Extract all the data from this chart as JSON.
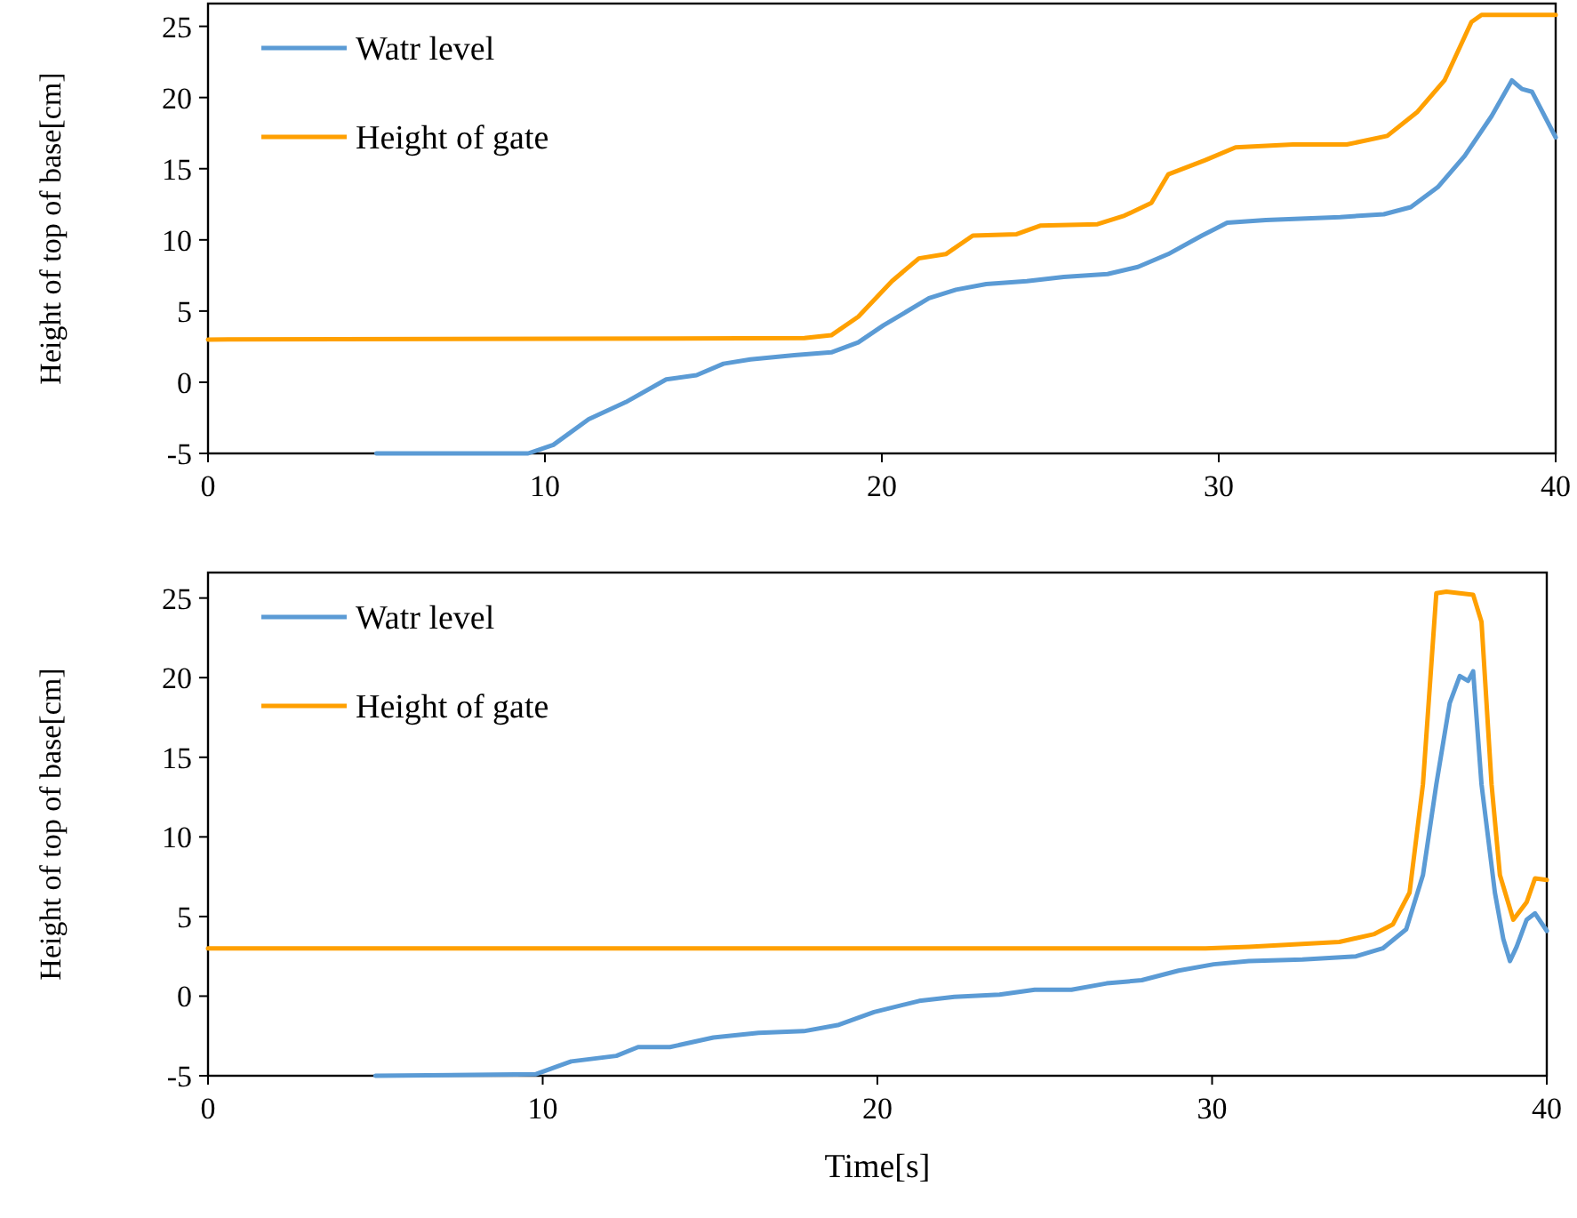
{
  "chart_data": [
    {
      "type": "line",
      "ylabel": "Height of top of base[cm]",
      "xlim": [
        0,
        40
      ],
      "xticks": [
        0,
        10,
        20,
        30,
        40
      ],
      "ylim": [
        -5,
        26.6
      ],
      "yticks": [
        -5,
        0,
        5,
        10,
        15,
        20,
        25
      ],
      "legend": "top left",
      "series": [
        {
          "name": "Watr level",
          "color": "#5b9bd5",
          "x": [
            5,
            9.5,
            10.25,
            11.3,
            12.4,
            13.6,
            14.5,
            15.3,
            16.1,
            17.4,
            18.5,
            19.3,
            20.05,
            21.4,
            22.2,
            23.1,
            24.3,
            25.4,
            26.7,
            27.6,
            28.5,
            29.5,
            30.25,
            31.4,
            33.6,
            34.9,
            35.7,
            36.5,
            37.3,
            38.1,
            38.7,
            39.0,
            39.3,
            40
          ],
          "values": [
            -5,
            -5,
            -4.4,
            -2.6,
            -1.4,
            0.2,
            0.5,
            1.3,
            1.6,
            1.9,
            2.1,
            2.8,
            4.0,
            5.9,
            6.5,
            6.9,
            7.1,
            7.4,
            7.6,
            8.1,
            9.0,
            10.3,
            11.2,
            11.4,
            11.6,
            11.8,
            12.3,
            13.7,
            15.9,
            18.7,
            21.2,
            20.6,
            20.4,
            17.2
          ]
        },
        {
          "name": "Height of gate",
          "color": "#ffa000",
          "x": [
            0,
            17.7,
            18.5,
            19.3,
            20.3,
            21.1,
            21.9,
            22.7,
            24.0,
            24.7,
            26.4,
            27.2,
            28.0,
            28.5,
            29.6,
            30.5,
            32.2,
            33.8,
            35.0,
            35.9,
            36.7,
            37.5,
            37.8,
            40
          ],
          "values": [
            3,
            3.1,
            3.3,
            4.6,
            7.1,
            8.7,
            9.0,
            10.3,
            10.4,
            11.0,
            11.1,
            11.7,
            12.6,
            14.6,
            15.6,
            16.5,
            16.7,
            16.7,
            17.3,
            19.0,
            21.2,
            25.3,
            25.8,
            25.8
          ]
        }
      ]
    },
    {
      "type": "line",
      "xlabel": "Time[s]",
      "ylabel": "Height of top of base[cm]",
      "xlim": [
        0,
        40
      ],
      "xticks": [
        0,
        10,
        20,
        30,
        40
      ],
      "ylim": [
        -5,
        26.6
      ],
      "yticks": [
        -5,
        0,
        5,
        10,
        15,
        20,
        25
      ],
      "legend": "top left",
      "series": [
        {
          "name": "Watr level",
          "color": "#5b9bd5",
          "x": [
            5,
            9.8,
            10.85,
            12.2,
            12.85,
            13.8,
            15.1,
            16.45,
            17.8,
            18.85,
            19.9,
            21.25,
            22.3,
            23.65,
            24.7,
            25.8,
            26.85,
            27.9,
            29.0,
            30.05,
            31.1,
            32.7,
            34.3,
            35.1,
            35.8,
            36.3,
            36.7,
            37.1,
            37.4,
            37.65,
            37.8,
            38.05,
            38.45,
            38.7,
            38.9,
            39.1,
            39.4,
            39.65,
            40
          ],
          "values": [
            -5,
            -4.9,
            -4.1,
            -3.75,
            -3.2,
            -3.2,
            -2.6,
            -2.3,
            -2.2,
            -1.8,
            -1.0,
            -0.3,
            -0.05,
            0.1,
            0.4,
            0.4,
            0.8,
            1.0,
            1.6,
            2.0,
            2.2,
            2.3,
            2.5,
            3.0,
            4.2,
            7.6,
            13.3,
            18.4,
            20.1,
            19.8,
            20.4,
            13.3,
            6.5,
            3.6,
            2.2,
            3.1,
            4.8,
            5.2,
            4.1
          ]
        },
        {
          "name": "Height of gate",
          "color": "#ffa000",
          "x": [
            0,
            29.8,
            31.1,
            33.8,
            34.85,
            35.4,
            35.9,
            36.3,
            36.7,
            37.0,
            37.8,
            38.05,
            38.35,
            38.6,
            39.0,
            39.4,
            39.65,
            40
          ],
          "values": [
            3,
            3,
            3.1,
            3.4,
            3.9,
            4.5,
            6.5,
            13.3,
            25.3,
            25.4,
            25.2,
            23.5,
            13.3,
            7.6,
            4.8,
            5.9,
            7.4,
            7.3
          ]
        }
      ]
    }
  ]
}
